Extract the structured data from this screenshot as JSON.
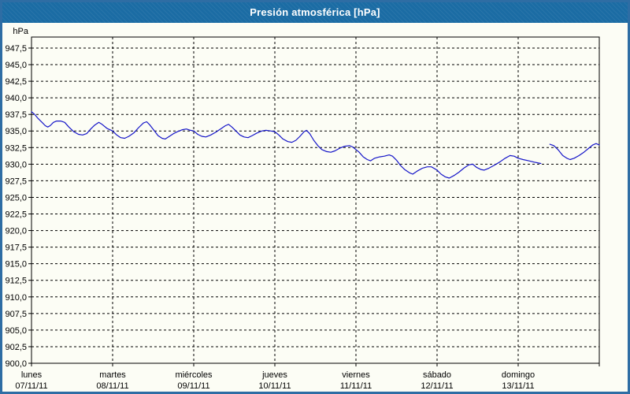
{
  "window": {
    "title": "Presión atmosférica [hPa]"
  },
  "colors": {
    "header_bg": "#1b6ca4",
    "header_text": "#ffffff",
    "outer_border": "#2e6da4",
    "background": "#fcfdf5",
    "grid": "#000000",
    "text": "#000000",
    "line": "#1515c8"
  },
  "chart_data": {
    "type": "line",
    "title": "Presión atmosférica [hPa]",
    "ylabel": "hPa",
    "xlabel": "",
    "ylim": [
      900,
      949.16
    ],
    "grid": "dashed",
    "legend": "none",
    "y_ticks": [
      {
        "value": 947.5,
        "label": "947,5"
      },
      {
        "value": 945.0,
        "label": "945,0"
      },
      {
        "value": 942.5,
        "label": "942,5"
      },
      {
        "value": 940.0,
        "label": "940,0"
      },
      {
        "value": 937.5,
        "label": "937,5"
      },
      {
        "value": 935.0,
        "label": "935,0"
      },
      {
        "value": 932.5,
        "label": "932,5"
      },
      {
        "value": 930.0,
        "label": "930,0"
      },
      {
        "value": 927.5,
        "label": "927,5"
      },
      {
        "value": 925.0,
        "label": "925,0"
      },
      {
        "value": 922.5,
        "label": "922,5"
      },
      {
        "value": 920.0,
        "label": "920,0"
      },
      {
        "value": 917.5,
        "label": "917,5"
      },
      {
        "value": 915.0,
        "label": "915,0"
      },
      {
        "value": 912.5,
        "label": "912,5"
      },
      {
        "value": 910.0,
        "label": "910,0"
      },
      {
        "value": 907.5,
        "label": "907,5"
      },
      {
        "value": 905.0,
        "label": "905,0"
      },
      {
        "value": 902.5,
        "label": "902,5"
      },
      {
        "value": 900.0,
        "label": "900,0"
      }
    ],
    "x_range_days": [
      0,
      7
    ],
    "x_days": [
      {
        "name": "lunes",
        "date": "07/11/11"
      },
      {
        "name": "martes",
        "date": "08/11/11"
      },
      {
        "name": "miércoles",
        "date": "09/11/11"
      },
      {
        "name": "jueves",
        "date": "10/11/11"
      },
      {
        "name": "viernes",
        "date": "11/11/11"
      },
      {
        "name": "sábado",
        "date": "12/11/11"
      },
      {
        "name": "domingo",
        "date": "13/11/11"
      }
    ],
    "series": [
      {
        "name": "presión atmosférica",
        "unit": "hPa",
        "color": "#1515c8",
        "segments": [
          [
            [
              0.0,
              937.9
            ],
            [
              0.04,
              937.5
            ],
            [
              0.08,
              936.9
            ],
            [
              0.13,
              936.3
            ],
            [
              0.17,
              935.8
            ],
            [
              0.2,
              935.6
            ],
            [
              0.23,
              935.8
            ],
            [
              0.27,
              936.3
            ],
            [
              0.31,
              936.5
            ],
            [
              0.36,
              936.5
            ],
            [
              0.41,
              936.3
            ],
            [
              0.46,
              935.6
            ],
            [
              0.52,
              934.9
            ],
            [
              0.58,
              934.5
            ],
            [
              0.63,
              934.4
            ],
            [
              0.68,
              934.6
            ],
            [
              0.73,
              935.3
            ],
            [
              0.78,
              935.9
            ],
            [
              0.83,
              936.3
            ],
            [
              0.87,
              936.0
            ],
            [
              0.93,
              935.4
            ],
            [
              1.0,
              935.0
            ],
            [
              1.05,
              934.4
            ],
            [
              1.1,
              934.0
            ],
            [
              1.15,
              933.9
            ],
            [
              1.2,
              934.2
            ],
            [
              1.26,
              934.7
            ],
            [
              1.32,
              935.5
            ],
            [
              1.38,
              936.2
            ],
            [
              1.42,
              936.4
            ],
            [
              1.46,
              935.9
            ],
            [
              1.51,
              935.1
            ],
            [
              1.56,
              934.3
            ],
            [
              1.61,
              933.9
            ],
            [
              1.65,
              933.8
            ],
            [
              1.7,
              934.2
            ],
            [
              1.75,
              934.6
            ],
            [
              1.8,
              934.9
            ],
            [
              1.86,
              935.2
            ],
            [
              1.91,
              935.3
            ],
            [
              1.96,
              935.1
            ],
            [
              2.0,
              935.0
            ],
            [
              2.05,
              934.5
            ],
            [
              2.1,
              934.2
            ],
            [
              2.15,
              934.1
            ],
            [
              2.21,
              934.4
            ],
            [
              2.27,
              934.8
            ],
            [
              2.33,
              935.3
            ],
            [
              2.39,
              935.8
            ],
            [
              2.43,
              936.0
            ],
            [
              2.47,
              935.6
            ],
            [
              2.52,
              935.0
            ],
            [
              2.57,
              934.4
            ],
            [
              2.62,
              934.1
            ],
            [
              2.67,
              934.0
            ],
            [
              2.72,
              934.3
            ],
            [
              2.78,
              934.7
            ],
            [
              2.84,
              935.0
            ],
            [
              2.89,
              935.1
            ],
            [
              2.95,
              935.0
            ],
            [
              3.0,
              934.9
            ],
            [
              3.05,
              934.4
            ],
            [
              3.1,
              933.8
            ],
            [
              3.16,
              933.4
            ],
            [
              3.21,
              933.3
            ],
            [
              3.26,
              933.6
            ],
            [
              3.31,
              934.2
            ],
            [
              3.36,
              934.9
            ],
            [
              3.39,
              935.1
            ],
            [
              3.43,
              934.6
            ],
            [
              3.48,
              933.6
            ],
            [
              3.53,
              932.8
            ],
            [
              3.58,
              932.2
            ],
            [
              3.64,
              931.9
            ],
            [
              3.69,
              931.8
            ],
            [
              3.74,
              932.0
            ],
            [
              3.8,
              932.4
            ],
            [
              3.86,
              932.7
            ],
            [
              3.92,
              932.8
            ],
            [
              3.96,
              932.6
            ],
            [
              4.0,
              932.2
            ],
            [
              4.04,
              931.8
            ],
            [
              4.09,
              931.1
            ],
            [
              4.14,
              930.7
            ],
            [
              4.18,
              930.5
            ],
            [
              4.23,
              930.9
            ],
            [
              4.29,
              931.1
            ],
            [
              4.35,
              931.2
            ],
            [
              4.41,
              931.4
            ],
            [
              4.45,
              931.2
            ],
            [
              4.5,
              930.6
            ],
            [
              4.55,
              929.8
            ],
            [
              4.6,
              929.2
            ],
            [
              4.66,
              928.7
            ],
            [
              4.7,
              928.5
            ],
            [
              4.76,
              929.0
            ],
            [
              4.82,
              929.4
            ],
            [
              4.88,
              929.6
            ],
            [
              4.93,
              929.6
            ],
            [
              5.0,
              929.1
            ],
            [
              5.05,
              928.5
            ],
            [
              5.1,
              928.1
            ],
            [
              5.15,
              927.9
            ],
            [
              5.21,
              928.3
            ],
            [
              5.27,
              928.8
            ],
            [
              5.33,
              929.4
            ],
            [
              5.39,
              929.9
            ],
            [
              5.44,
              930.0
            ],
            [
              5.49,
              929.5
            ],
            [
              5.54,
              929.2
            ],
            [
              5.58,
              929.1
            ],
            [
              5.64,
              929.4
            ],
            [
              5.7,
              929.8
            ],
            [
              5.77,
              930.3
            ],
            [
              5.84,
              930.9
            ],
            [
              5.9,
              931.3
            ],
            [
              5.95,
              931.2
            ],
            [
              6.0,
              930.9
            ],
            [
              6.06,
              930.7
            ],
            [
              6.13,
              930.5
            ],
            [
              6.2,
              930.3
            ],
            [
              6.28,
              930.1
            ]
          ],
          [
            [
              6.39,
              933.0
            ],
            [
              6.44,
              932.8
            ],
            [
              6.49,
              932.2
            ],
            [
              6.55,
              931.3
            ],
            [
              6.6,
              930.9
            ],
            [
              6.64,
              930.7
            ],
            [
              6.69,
              930.9
            ],
            [
              6.75,
              931.3
            ],
            [
              6.81,
              931.8
            ],
            [
              6.87,
              932.4
            ],
            [
              6.92,
              932.9
            ],
            [
              6.96,
              933.1
            ],
            [
              7.0,
              932.9
            ]
          ]
        ]
      }
    ]
  }
}
